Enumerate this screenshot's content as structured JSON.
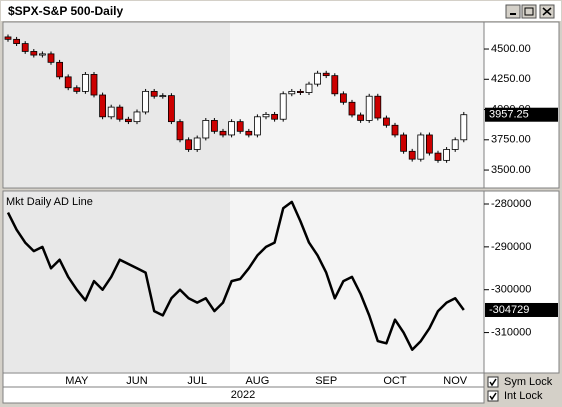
{
  "window": {
    "title": "$SPX-S&P 500-Daily",
    "year": "2022",
    "controls": [
      "Sym Lock",
      "Int Lock"
    ]
  },
  "chart_data": [
    {
      "type": "candlestick",
      "categories": [
        null,
        null,
        null,
        null,
        null,
        null,
        null,
        null,
        "MAY",
        null,
        null,
        null,
        null,
        null,
        null,
        "JUN",
        null,
        null,
        null,
        null,
        null,
        null,
        "JUL",
        null,
        null,
        null,
        null,
        null,
        null,
        "AUG",
        null,
        null,
        null,
        null,
        null,
        null,
        null,
        "SEP",
        null,
        null,
        null,
        null,
        null,
        null,
        null,
        "OCT",
        null,
        null,
        null,
        null,
        null,
        null,
        "NOV",
        null
      ],
      "open": [
        4600,
        4580,
        4545,
        4480,
        4450,
        4460,
        4390,
        4270,
        4180,
        4150,
        4290,
        4120,
        3940,
        4020,
        3920,
        3900,
        3980,
        4150,
        4110,
        4115,
        3900,
        3750,
        3670,
        3765,
        3910,
        3820,
        3790,
        3900,
        3820,
        3790,
        3940,
        3960,
        3920,
        4130,
        4150,
        4140,
        4210,
        4300,
        4280,
        4130,
        4060,
        3955,
        3910,
        4110,
        3930,
        3870,
        3790,
        3655,
        3590,
        3790,
        3640,
        3580,
        3670,
        3750
      ],
      "high": [
        4620,
        4600,
        4565,
        4500,
        4480,
        4480,
        4410,
        4290,
        4200,
        4310,
        4310,
        4140,
        4040,
        4040,
        3940,
        4000,
        4170,
        4170,
        4135,
        4135,
        3920,
        3770,
        3785,
        3930,
        3930,
        3840,
        3920,
        3920,
        3840,
        3960,
        3980,
        3980,
        4150,
        4170,
        4170,
        4230,
        4320,
        4320,
        4300,
        4150,
        4080,
        3975,
        4130,
        4130,
        3950,
        3890,
        3810,
        3675,
        3810,
        3810,
        3660,
        3690,
        3770,
        3980
      ],
      "low": [
        4560,
        4525,
        4460,
        4430,
        4430,
        4370,
        4250,
        4160,
        4130,
        4130,
        4100,
        3920,
        3920,
        3900,
        3880,
        3880,
        3960,
        4090,
        4090,
        3880,
        3730,
        3650,
        3650,
        3745,
        3800,
        3770,
        3770,
        3800,
        3770,
        3770,
        3920,
        3900,
        3900,
        4110,
        4120,
        4120,
        4190,
        4260,
        4110,
        4040,
        3935,
        3890,
        3890,
        3910,
        3850,
        3770,
        3635,
        3570,
        3570,
        3620,
        3560,
        3560,
        3650,
        3730
      ],
      "close": [
        4580,
        4545,
        4480,
        4450,
        4460,
        4390,
        4270,
        4180,
        4150,
        4290,
        4120,
        3940,
        4020,
        3920,
        3900,
        3980,
        4150,
        4110,
        4115,
        3900,
        3750,
        3670,
        3765,
        3910,
        3820,
        3790,
        3900,
        3820,
        3790,
        3940,
        3960,
        3920,
        4130,
        4150,
        4140,
        4210,
        4300,
        4280,
        4130,
        4060,
        3955,
        3910,
        4110,
        3930,
        3870,
        3790,
        3655,
        3590,
        3790,
        3640,
        3580,
        3670,
        3750,
        3957.25
      ],
      "up_color": "#ffffff",
      "down_color": "#cc0000",
      "ylim": [
        3360,
        4715
      ],
      "yticks": [
        {
          "value": 3500,
          "label": "3500.00"
        },
        {
          "value": 3750,
          "label": "3750.00"
        },
        {
          "value": 4000,
          "label": "4000.00"
        },
        {
          "value": 4250,
          "label": "4250.00"
        },
        {
          "value": 4500,
          "label": "4500.00"
        }
      ]
    },
    {
      "type": "line",
      "title": "Mkt Daily AD Line",
      "color": "#000000",
      "values": [
        -282000,
        -286000,
        -289000,
        -291000,
        -290000,
        -295000,
        -293000,
        -297000,
        -300000,
        -302500,
        -298000,
        -300000,
        -297000,
        -293000,
        -294000,
        -295000,
        -296000,
        -305000,
        -306000,
        -302000,
        -300000,
        -302000,
        -303000,
        -302000,
        -305000,
        -303000,
        -298000,
        -297500,
        -295000,
        -292000,
        -290000,
        -289000,
        -281000,
        -279500,
        -284000,
        -289000,
        -292000,
        -296000,
        -302000,
        -298000,
        -297000,
        -301000,
        -306000,
        -312000,
        -312500,
        -307000,
        -310000,
        -314000,
        -312000,
        -309000,
        -305000,
        -303000,
        -302000,
        -304729
      ],
      "ylim": [
        -319200,
        -277200
      ],
      "yticks": [
        -310000,
        -300000,
        -290000,
        -280000
      ]
    }
  ]
}
